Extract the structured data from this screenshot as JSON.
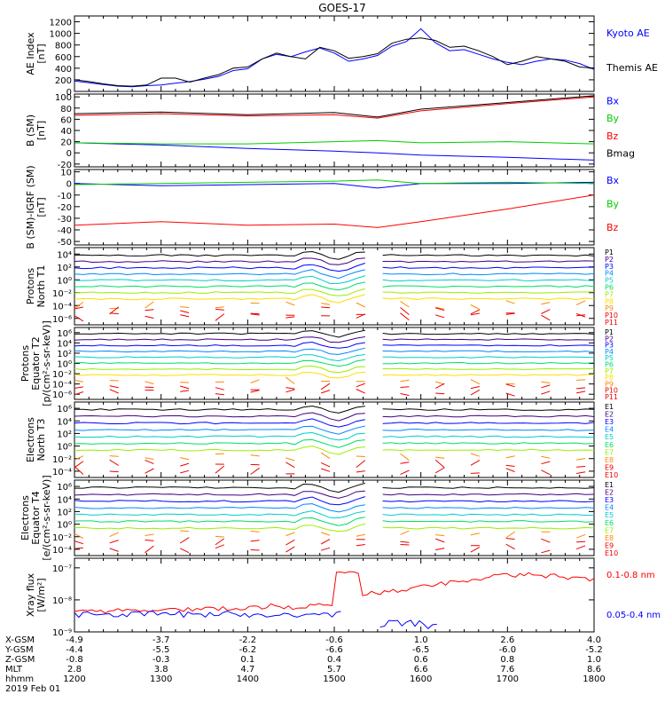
{
  "title": "GOES-17",
  "chart_data": [
    {
      "type": "line",
      "ylabel": [
        "AE Index",
        "[nT]"
      ],
      "yticks": [
        0,
        200,
        400,
        600,
        800,
        1000,
        1200
      ],
      "ylim": [
        0,
        1300
      ],
      "series": [
        {
          "name": "Kyoto AE",
          "color": "#0000ff",
          "x": [
            1200,
            1210,
            1220,
            1230,
            1240,
            1250,
            1300,
            1310,
            1320,
            1330,
            1340,
            1350,
            1400,
            1410,
            1420,
            1430,
            1440,
            1450,
            1500,
            1510,
            1520,
            1530,
            1540,
            1550,
            1600,
            1610,
            1620,
            1630,
            1640,
            1650,
            1700,
            1710,
            1720,
            1730,
            1740,
            1750,
            1800
          ],
          "y": [
            180,
            150,
            120,
            90,
            80,
            100,
            110,
            140,
            170,
            210,
            260,
            360,
            390,
            560,
            640,
            600,
            680,
            750,
            660,
            520,
            560,
            620,
            780,
            860,
            1080,
            840,
            700,
            720,
            640,
            560,
            500,
            460,
            520,
            560,
            540,
            480,
            380
          ]
        },
        {
          "name": "Themis AE",
          "color": "#000000",
          "x": [
            1200,
            1210,
            1220,
            1230,
            1240,
            1250,
            1300,
            1310,
            1320,
            1330,
            1340,
            1350,
            1400,
            1410,
            1420,
            1430,
            1440,
            1450,
            1500,
            1510,
            1520,
            1530,
            1540,
            1550,
            1600,
            1610,
            1620,
            1630,
            1640,
            1650,
            1700,
            1710,
            1720,
            1730,
            1740,
            1750,
            1800
          ],
          "y": [
            200,
            170,
            130,
            100,
            90,
            110,
            230,
            230,
            160,
            230,
            290,
            400,
            420,
            560,
            660,
            600,
            560,
            760,
            700,
            570,
            600,
            650,
            830,
            900,
            920,
            880,
            760,
            780,
            700,
            600,
            460,
            520,
            600,
            560,
            520,
            420,
            400
          ]
        }
      ]
    },
    {
      "type": "line",
      "ylabel": [
        "B (SM)",
        "[nT]"
      ],
      "yticks": [
        -20,
        0,
        20,
        40,
        60,
        80,
        100
      ],
      "ylim": [
        -25,
        105
      ],
      "series": [
        {
          "name": "Bx",
          "color": "#0000ff",
          "x": [
            1200,
            1300,
            1400,
            1500,
            1530,
            1600,
            1700,
            1800
          ],
          "y": [
            18,
            14,
            8,
            3,
            0,
            -4,
            -8,
            -13
          ]
        },
        {
          "name": "By",
          "color": "#00cc00",
          "x": [
            1200,
            1300,
            1400,
            1500,
            1530,
            1600,
            1700,
            1800
          ],
          "y": [
            18,
            16,
            16,
            20,
            22,
            18,
            20,
            16
          ]
        },
        {
          "name": "Bz",
          "color": "#ff0000",
          "x": [
            1200,
            1300,
            1400,
            1500,
            1530,
            1600,
            1700,
            1800
          ],
          "y": [
            67,
            70,
            66,
            68,
            62,
            75,
            88,
            100
          ]
        },
        {
          "name": "Bmag",
          "color": "#000000",
          "x": [
            1200,
            1300,
            1400,
            1500,
            1530,
            1600,
            1700,
            1800
          ],
          "y": [
            70,
            73,
            68,
            72,
            64,
            78,
            90,
            102
          ]
        }
      ]
    },
    {
      "type": "line",
      "ylabel": [
        "B (SM)-IGRF (SM)",
        "[nT]"
      ],
      "yticks": [
        -50,
        -40,
        -30,
        -20,
        -10,
        0,
        10
      ],
      "ylim": [
        -53,
        12
      ],
      "series": [
        {
          "name": "Bx",
          "color": "#0000ff",
          "x": [
            1200,
            1300,
            1400,
            1500,
            1530,
            1600,
            1700,
            1800
          ],
          "y": [
            0,
            -2,
            -1,
            0,
            -4,
            0,
            0,
            1
          ]
        },
        {
          "name": "By",
          "color": "#00cc00",
          "x": [
            1200,
            1300,
            1400,
            1500,
            1530,
            1600,
            1700,
            1800
          ],
          "y": [
            -1,
            0,
            1,
            2,
            3,
            0,
            1,
            0
          ]
        },
        {
          "name": "Bz",
          "color": "#ff0000",
          "x": [
            1200,
            1300,
            1400,
            1500,
            1530,
            1600,
            1700,
            1800
          ],
          "y": [
            -36,
            -33,
            -36,
            -35,
            -38,
            -33,
            -22,
            -10
          ]
        }
      ]
    },
    {
      "type": "line",
      "log": true,
      "ylabel": [
        "Protons",
        "North T1"
      ],
      "yticks": [
        -6,
        -4,
        -2,
        0,
        2,
        4
      ],
      "ylim": [
        -7,
        5
      ],
      "series": [
        {
          "name": "P1",
          "color": "#000000"
        },
        {
          "name": "P2",
          "color": "#400080"
        },
        {
          "name": "P3",
          "color": "#0000ff"
        },
        {
          "name": "P4",
          "color": "#0088ff"
        },
        {
          "name": "P5",
          "color": "#00cccc"
        },
        {
          "name": "P6",
          "color": "#00dd66"
        },
        {
          "name": "P7",
          "color": "#99ee00"
        },
        {
          "name": "P8",
          "color": "#ffdd00"
        },
        {
          "name": "P9",
          "color": "#ff8800"
        },
        {
          "name": "P10",
          "color": "#ee0000"
        },
        {
          "name": "P11",
          "color": "#ee0000"
        }
      ]
    },
    {
      "type": "line",
      "log": true,
      "ylabel": [
        "Protons",
        "Equator T2",
        "[p/(cm²-s-sr-keV)]"
      ],
      "yticks": [
        -6,
        -4,
        -2,
        0,
        2,
        4,
        6
      ],
      "ylim": [
        -7,
        7
      ],
      "series": [
        {
          "name": "P1",
          "color": "#000000"
        },
        {
          "name": "P2",
          "color": "#400080"
        },
        {
          "name": "P3",
          "color": "#0000ff"
        },
        {
          "name": "P4",
          "color": "#0088ff"
        },
        {
          "name": "P5",
          "color": "#00cccc"
        },
        {
          "name": "P6",
          "color": "#00dd66"
        },
        {
          "name": "P7",
          "color": "#99ee00"
        },
        {
          "name": "P8",
          "color": "#ffdd00"
        },
        {
          "name": "P9",
          "color": "#ff8800"
        },
        {
          "name": "P10",
          "color": "#ee0000"
        },
        {
          "name": "P11",
          "color": "#ee0000"
        }
      ]
    },
    {
      "type": "line",
      "log": true,
      "ylabel": [
        "Electrons",
        "North T3"
      ],
      "yticks": [
        -4,
        -2,
        0,
        2,
        4,
        6
      ],
      "ylim": [
        -5,
        7
      ],
      "series": [
        {
          "name": "E1",
          "color": "#000000"
        },
        {
          "name": "E2",
          "color": "#400080"
        },
        {
          "name": "E3",
          "color": "#0000ff"
        },
        {
          "name": "E4",
          "color": "#0088ff"
        },
        {
          "name": "E5",
          "color": "#00cccc"
        },
        {
          "name": "E6",
          "color": "#00dd66"
        },
        {
          "name": "E7",
          "color": "#99ee00"
        },
        {
          "name": "E8",
          "color": "#ff8800"
        },
        {
          "name": "E9",
          "color": "#ee0000"
        },
        {
          "name": "E10",
          "color": "#ee0000"
        }
      ]
    },
    {
      "type": "line",
      "log": true,
      "ylabel": [
        "Electrons",
        "Equator T4",
        "[e/(cm²-s-sr-keV)]"
      ],
      "yticks": [
        -4,
        -2,
        0,
        2,
        4,
        6
      ],
      "ylim": [
        -5,
        7
      ],
      "series": [
        {
          "name": "E1",
          "color": "#000000"
        },
        {
          "name": "E2",
          "color": "#400080"
        },
        {
          "name": "E3",
          "color": "#0000ff"
        },
        {
          "name": "E4",
          "color": "#0088ff"
        },
        {
          "name": "E5",
          "color": "#00cccc"
        },
        {
          "name": "E6",
          "color": "#00dd66"
        },
        {
          "name": "E7",
          "color": "#99ee00"
        },
        {
          "name": "E8",
          "color": "#ff8800"
        },
        {
          "name": "E9",
          "color": "#ee0000"
        },
        {
          "name": "E10",
          "color": "#ee0000"
        }
      ]
    },
    {
      "type": "line",
      "log": true,
      "ylabel": [
        "Xray flux",
        "[W/m²]"
      ],
      "yticks": [
        -9,
        -8,
        -7
      ],
      "ylim": [
        -9,
        -6.7
      ],
      "series": [
        {
          "name": "0.1-0.8 nm",
          "color": "#ff0000"
        },
        {
          "name": "0.05-0.4 nm",
          "color": "#0000ff"
        }
      ]
    }
  ],
  "x_axis": {
    "ticks": [
      1200,
      1300,
      1400,
      1500,
      1600,
      1700,
      1800
    ],
    "rows": [
      {
        "label": "X-GSM",
        "values": [
          "-4.9",
          "-3.7",
          "-2.2",
          "-0.6",
          "1.0",
          "2.6",
          "4.0"
        ]
      },
      {
        "label": "Y-GSM",
        "values": [
          "-4.4",
          "-5.5",
          "-6.2",
          "-6.6",
          "-6.5",
          "-6.0",
          "-5.2"
        ]
      },
      {
        "label": "Z-GSM",
        "values": [
          "-0.8",
          "-0.3",
          "0.1",
          "0.4",
          "0.6",
          "0.8",
          "1.0"
        ]
      },
      {
        "label": "MLT",
        "values": [
          "2.8",
          "3.8",
          "4.7",
          "5.7",
          "6.6",
          "7.6",
          "8.6"
        ]
      },
      {
        "label": "hhmm",
        "values": [
          "1200",
          "1300",
          "1400",
          "1500",
          "1600",
          "1700",
          "1800"
        ]
      }
    ],
    "date": "2019 Feb 01"
  }
}
